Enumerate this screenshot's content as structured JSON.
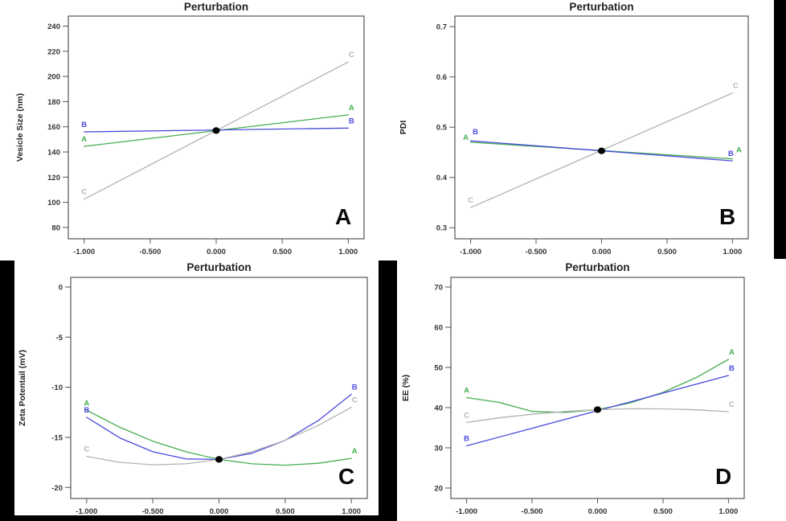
{
  "figure": {
    "background": "#ffffff",
    "bars_color": "#000000",
    "frame_color": "#555555",
    "accent_green": "#44ad4f",
    "accent_blue": "#4a4ade",
    "accent_gray": "#b2b2b2"
  },
  "chart_data": [
    {
      "id": "A",
      "type": "line",
      "title": "Perturbation",
      "xlabel": "",
      "ylabel": "Vesicle Size (nm)",
      "corner_label": "A",
      "grid": false,
      "legend": "none",
      "xlim": [
        -1.12,
        1.12
      ],
      "ylim": [
        71,
        248
      ],
      "xticks": {
        "values": [
          -1,
          -0.5,
          0,
          0.5,
          1
        ],
        "labels": [
          "-1.000",
          "-0.500",
          "0.000",
          "0.500",
          "1.000"
        ]
      },
      "yticks": {
        "values": [
          80,
          100,
          120,
          140,
          160,
          180,
          200,
          220,
          240
        ],
        "labels": [
          "80",
          "100",
          "120",
          "140",
          "160",
          "180",
          "200",
          "220",
          "240"
        ]
      },
      "center_point": [
        0,
        157
      ],
      "series": [
        {
          "name": "A",
          "color": "#44ad4f",
          "points": [
            [
              -1,
              144.5
            ],
            [
              1,
              169.5
            ]
          ]
        },
        {
          "name": "B",
          "color": "#4a4ade",
          "points": [
            [
              -1,
              156
            ],
            [
              1,
              159
            ]
          ]
        },
        {
          "name": "C",
          "color": "#b2b2b2",
          "points": [
            [
              -1,
              102.5
            ],
            [
              1,
              211.5
            ]
          ]
        }
      ]
    },
    {
      "id": "B",
      "type": "line",
      "title": "Perturbation",
      "xlabel": "",
      "ylabel": "PDI",
      "corner_label": "B",
      "grid": false,
      "legend": "none",
      "xlim": [
        -1.12,
        1.12
      ],
      "ylim": [
        0.278,
        0.721
      ],
      "xticks": {
        "values": [
          -1,
          -0.5,
          0,
          0.5,
          1
        ],
        "labels": [
          "-1.000",
          "-0.500",
          "0.000",
          "0.500",
          "1.000"
        ]
      },
      "yticks": {
        "values": [
          0.3,
          0.4,
          0.5,
          0.6,
          0.7
        ],
        "labels": [
          "0.3",
          "0.4",
          "0.5",
          "0.6",
          "0.7"
        ]
      },
      "center_point": [
        0,
        0.453
      ],
      "series": [
        {
          "name": "A",
          "color": "#44ad4f",
          "points": [
            [
              -1,
              0.47
            ],
            [
              1,
              0.437
            ]
          ],
          "label_offsets": {
            "start": [
              -6,
              -3
            ],
            "end": [
              8,
              -8
            ]
          }
        },
        {
          "name": "B",
          "color": "#4a4ade",
          "points": [
            [
              -1,
              0.473
            ],
            [
              1,
              0.433
            ]
          ],
          "label_offsets": {
            "start": [
              6,
              -8
            ],
            "end": [
              -2,
              -6
            ]
          }
        },
        {
          "name": "C",
          "color": "#b2b2b2",
          "points": [
            [
              -1,
              0.34
            ],
            [
              1,
              0.568
            ]
          ]
        }
      ]
    },
    {
      "id": "C",
      "type": "line",
      "title": "Perturbation",
      "xlabel": "",
      "ylabel": "Zeta Potentail (mV)",
      "corner_label": "C",
      "grid": false,
      "legend": "none",
      "xlim": [
        -1.12,
        1.12
      ],
      "ylim": [
        -21.1,
        0.96
      ],
      "xticks": {
        "values": [
          -1,
          -0.5,
          0,
          0.5,
          1
        ],
        "labels": [
          "-1.000",
          "-0.500",
          "0.000",
          "0.500",
          "1.000"
        ]
      },
      "yticks": {
        "values": [
          0,
          -5,
          -10,
          -15,
          -20
        ],
        "labels": [
          "0",
          "-5",
          "-10",
          "-15",
          "-20"
        ]
      },
      "center_point": [
        0,
        -17.2
      ],
      "series": [
        {
          "name": "A",
          "color": "#44ad4f",
          "points": [
            [
              -1,
              -12.3
            ],
            [
              -0.75,
              -13.99
            ],
            [
              -0.5,
              -15.38
            ],
            [
              -0.25,
              -16.44
            ],
            [
              0,
              -17.2
            ],
            [
              0.25,
              -17.64
            ],
            [
              0.5,
              -17.78
            ],
            [
              0.75,
              -17.59
            ],
            [
              1,
              -17.1
            ]
          ]
        },
        {
          "name": "B",
          "color": "#4a4ade",
          "points": [
            [
              -1,
              -13.0
            ],
            [
              -0.75,
              -15.05
            ],
            [
              -0.5,
              -16.44
            ],
            [
              -0.25,
              -17.15
            ],
            [
              0,
              -17.2
            ],
            [
              0.25,
              -16.58
            ],
            [
              0.5,
              -15.29
            ],
            [
              0.75,
              -13.33
            ],
            [
              1,
              -10.7
            ]
          ]
        },
        {
          "name": "C",
          "color": "#b2b2b2",
          "points": [
            [
              -1,
              -16.9
            ],
            [
              -0.75,
              -17.49
            ],
            [
              -0.5,
              -17.74
            ],
            [
              -0.25,
              -17.64
            ],
            [
              0,
              -17.2
            ],
            [
              0.25,
              -16.42
            ],
            [
              0.5,
              -15.29
            ],
            [
              0.75,
              -13.82
            ],
            [
              1,
              -12.0
            ]
          ]
        }
      ]
    },
    {
      "id": "D",
      "type": "line",
      "title": "Perturbation",
      "xlabel": "",
      "ylabel": "EE (%)",
      "corner_label": "D",
      "grid": false,
      "legend": "none",
      "xlim": [
        -1.12,
        1.12
      ],
      "ylim": [
        17.4,
        72.4
      ],
      "xticks": {
        "values": [
          -1,
          -0.5,
          0,
          0.5,
          1
        ],
        "labels": [
          "-1.000",
          "-0.500",
          "0.000",
          "0.500",
          "1.000"
        ]
      },
      "yticks": {
        "values": [
          20,
          30,
          40,
          50,
          60,
          70
        ],
        "labels": [
          "20",
          "30",
          "40",
          "50",
          "60",
          "70"
        ]
      },
      "center_point": [
        0,
        39.5
      ],
      "series": [
        {
          "name": "A",
          "color": "#44ad4f",
          "points": [
            [
              -1,
              42.5
            ],
            [
              -0.75,
              41.3
            ],
            [
              -0.5,
              39.06
            ],
            [
              -0.25,
              38.8
            ],
            [
              0,
              39.5
            ],
            [
              0.25,
              41.17
            ],
            [
              0.5,
              43.81
            ],
            [
              0.75,
              47.42
            ],
            [
              1,
              52
            ]
          ]
        },
        {
          "name": "B",
          "color": "#4a4ade",
          "points": [
            [
              -1,
              30.5
            ],
            [
              1,
              48
            ]
          ]
        },
        {
          "name": "C",
          "color": "#b2b2b2",
          "points": [
            [
              -1,
              36.3
            ],
            [
              -0.75,
              37.45
            ],
            [
              -0.5,
              38.36
            ],
            [
              -0.25,
              39.05
            ],
            [
              0,
              39.5
            ],
            [
              0.25,
              39.72
            ],
            [
              0.5,
              39.71
            ],
            [
              0.75,
              39.47
            ],
            [
              1,
              39.0
            ]
          ]
        }
      ]
    }
  ]
}
